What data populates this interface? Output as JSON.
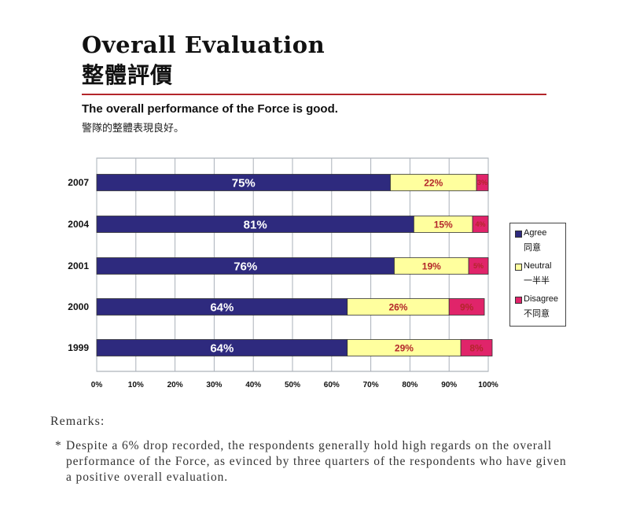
{
  "heading": {
    "title_en": "Overall Evaluation",
    "title_zh": "整體評價"
  },
  "question": {
    "en": "The overall performance of the Force is good.",
    "zh": "警隊的整體表現良好。"
  },
  "chart_data": {
    "type": "bar",
    "orientation": "horizontal",
    "stacked": true,
    "categories": [
      "2007",
      "2004",
      "2001",
      "2000",
      "1999"
    ],
    "series": [
      {
        "name": "Agree",
        "name_zh": "同意",
        "color": "#2e2a7e",
        "values": [
          75,
          81,
          76,
          64,
          64
        ],
        "labels": [
          "75%",
          "81%",
          "76%",
          "64%",
          "64%"
        ],
        "label_color": "#ffffff"
      },
      {
        "name": "Neutral",
        "name_zh": "一半半",
        "color": "#ffff9e",
        "values": [
          22,
          15,
          19,
          26,
          29
        ],
        "labels": [
          "22%",
          "15%",
          "19%",
          "26%",
          "29%"
        ],
        "label_color": "#b3262a"
      },
      {
        "name": "Disagree",
        "name_zh": "不同意",
        "color": "#e0246a",
        "values": [
          3,
          4,
          5,
          9,
          8
        ],
        "labels": [
          "3%",
          "4%",
          "5%",
          "9%",
          "8%"
        ],
        "label_color": "#b3262a"
      }
    ],
    "xticks": [
      "0%",
      "10%",
      "20%",
      "30%",
      "40%",
      "50%",
      "60%",
      "70%",
      "80%",
      "90%",
      "100%"
    ],
    "xlim": [
      0,
      100
    ],
    "grid": true,
    "legend_position": "right"
  },
  "remarks": {
    "title": "Remarks:",
    "bullet": "*",
    "text": "Despite a 6% drop recorded, the respondents generally hold high regards on the overall performance of the Force, as evinced by three quarters of the respondents who have given a positive overall evaluation."
  }
}
